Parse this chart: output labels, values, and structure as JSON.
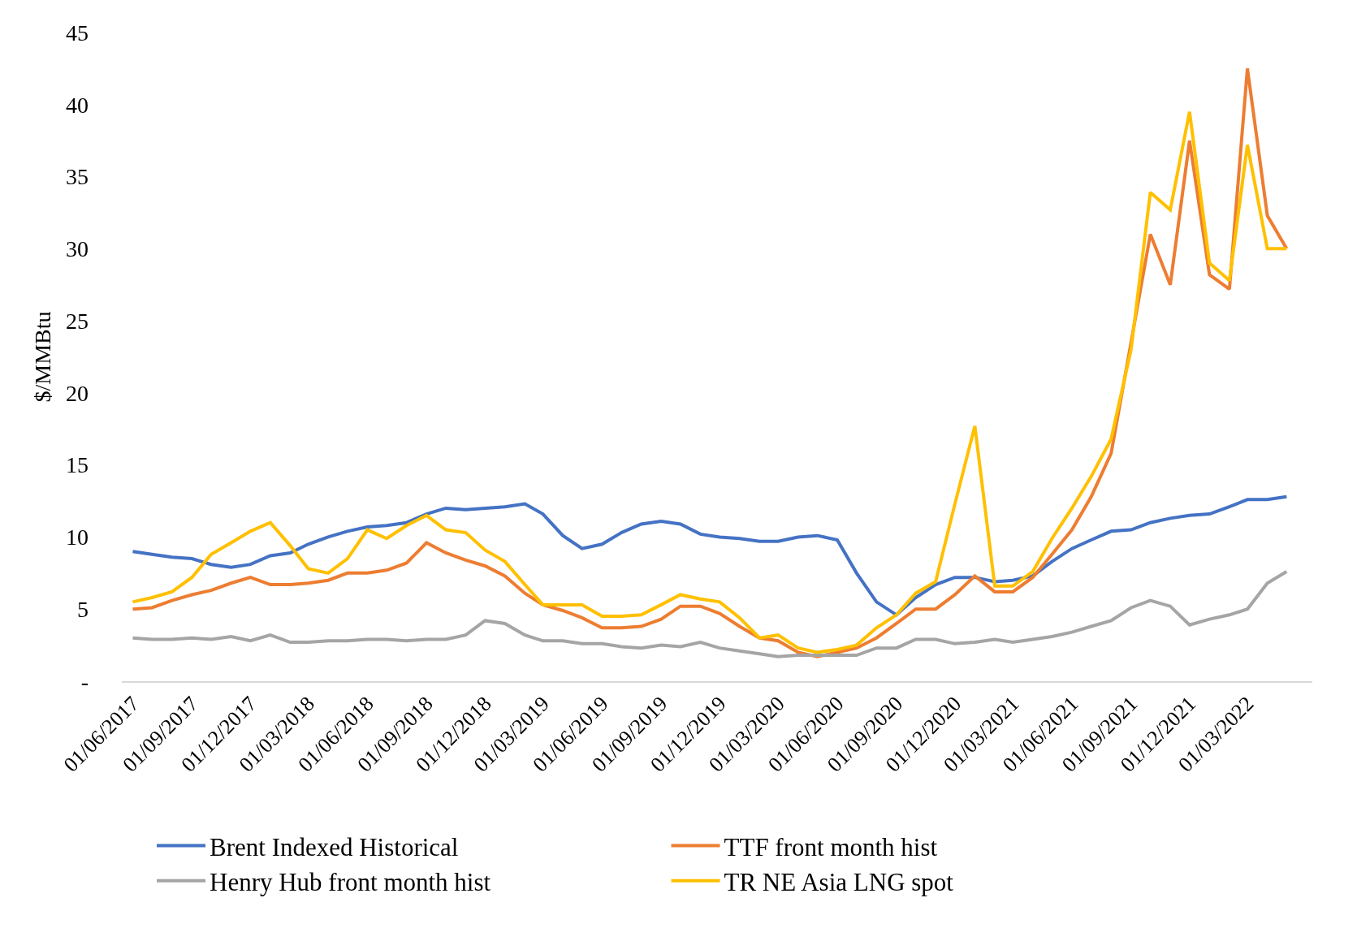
{
  "chart_data": {
    "type": "line",
    "ylabel": "$/MMBtu",
    "x": [
      "2017-06",
      "2017-07",
      "2017-08",
      "2017-09",
      "2017-10",
      "2017-11",
      "2017-12",
      "2018-01",
      "2018-02",
      "2018-03",
      "2018-04",
      "2018-05",
      "2018-06",
      "2018-07",
      "2018-08",
      "2018-09",
      "2018-10",
      "2018-11",
      "2018-12",
      "2019-01",
      "2019-02",
      "2019-03",
      "2019-04",
      "2019-05",
      "2019-06",
      "2019-07",
      "2019-08",
      "2019-09",
      "2019-10",
      "2019-11",
      "2019-12",
      "2020-01",
      "2020-02",
      "2020-03",
      "2020-04",
      "2020-05",
      "2020-06",
      "2020-07",
      "2020-08",
      "2020-09",
      "2020-10",
      "2020-11",
      "2020-12",
      "2021-01",
      "2021-02",
      "2021-03",
      "2021-04",
      "2021-05",
      "2021-06",
      "2021-07",
      "2021-08",
      "2021-09",
      "2021-10",
      "2021-11",
      "2021-12",
      "2022-01",
      "2022-02",
      "2022-03",
      "2022-04",
      "2022-05"
    ],
    "series": [
      {
        "name": "Brent Indexed Historical",
        "color": "#4472c4",
        "values": [
          9.0,
          8.8,
          8.6,
          8.5,
          8.1,
          7.9,
          8.1,
          8.7,
          8.9,
          9.5,
          10.0,
          10.4,
          10.7,
          10.8,
          11.0,
          11.6,
          12.0,
          11.9,
          12.0,
          12.1,
          12.3,
          11.6,
          10.1,
          9.2,
          9.5,
          10.3,
          10.9,
          11.1,
          10.9,
          10.2,
          10.0,
          9.9,
          9.7,
          9.7,
          10.0,
          10.1,
          9.8,
          7.5,
          5.5,
          4.6,
          5.8,
          6.7,
          7.2,
          7.2,
          6.9,
          7.0,
          7.3,
          8.3,
          9.2,
          9.8,
          10.4,
          10.5,
          11.0,
          11.3,
          11.5,
          11.6,
          12.1,
          12.6,
          12.6,
          12.8
        ]
      },
      {
        "name": "TTF front month hist",
        "color": "#ed7d31",
        "values": [
          5.0,
          5.1,
          5.6,
          6.0,
          6.3,
          6.8,
          7.2,
          6.7,
          6.7,
          6.8,
          7.0,
          7.5,
          7.5,
          7.7,
          8.2,
          9.6,
          8.9,
          8.4,
          8.0,
          7.3,
          6.1,
          5.3,
          4.9,
          4.4,
          3.7,
          3.7,
          3.8,
          4.3,
          5.2,
          5.2,
          4.7,
          3.8,
          3.0,
          2.8,
          2.0,
          1.7,
          2.0,
          2.3,
          3.0,
          4.0,
          5.0,
          5.0,
          6.0,
          7.3,
          6.2,
          6.2,
          7.2,
          8.8,
          10.5,
          12.8,
          15.8,
          23.5,
          31.0,
          27.5,
          37.5,
          28.2,
          27.2,
          42.5,
          32.3,
          30.0
        ]
      },
      {
        "name": "Henry Hub front month hist",
        "color": "#a5a5a5",
        "values": [
          3.0,
          2.9,
          2.9,
          3.0,
          2.9,
          3.1,
          2.8,
          3.2,
          2.7,
          2.7,
          2.8,
          2.8,
          2.9,
          2.9,
          2.8,
          2.9,
          2.9,
          3.2,
          4.2,
          4.0,
          3.2,
          2.8,
          2.8,
          2.6,
          2.6,
          2.4,
          2.3,
          2.5,
          2.4,
          2.7,
          2.3,
          2.1,
          1.9,
          1.7,
          1.8,
          1.8,
          1.8,
          1.8,
          2.3,
          2.3,
          2.9,
          2.9,
          2.6,
          2.7,
          2.9,
          2.7,
          2.9,
          3.1,
          3.4,
          3.8,
          4.2,
          5.1,
          5.6,
          5.2,
          3.9,
          4.3,
          4.6,
          5.0,
          6.8,
          7.6
        ]
      },
      {
        "name": "TR NE Asia LNG spot",
        "color": "#ffc000",
        "values": [
          5.5,
          5.8,
          6.2,
          7.2,
          8.8,
          9.6,
          10.4,
          11.0,
          9.4,
          7.8,
          7.5,
          8.5,
          10.5,
          9.9,
          10.8,
          11.5,
          10.5,
          10.3,
          9.1,
          8.3,
          6.7,
          5.3,
          5.3,
          5.3,
          4.5,
          4.5,
          4.6,
          5.3,
          6.0,
          5.7,
          5.5,
          4.4,
          3.0,
          3.2,
          2.3,
          2.0,
          2.2,
          2.5,
          3.7,
          4.6,
          6.1,
          6.9,
          12.3,
          17.7,
          6.6,
          6.6,
          7.6,
          9.9,
          12.0,
          14.2,
          16.8,
          23.0,
          33.9,
          32.7,
          39.5,
          29.0,
          27.8,
          37.2,
          30.0,
          30.0
        ]
      }
    ],
    "xlim": [
      "2017-05-15",
      "2022-06-10"
    ],
    "xticks": [
      {
        "value": "2017-06",
        "label": "01/06/2017"
      },
      {
        "value": "2017-09",
        "label": "01/09/2017"
      },
      {
        "value": "2017-12",
        "label": "01/12/2017"
      },
      {
        "value": "2018-03",
        "label": "01/03/2018"
      },
      {
        "value": "2018-06",
        "label": "01/06/2018"
      },
      {
        "value": "2018-09",
        "label": "01/09/2018"
      },
      {
        "value": "2018-12",
        "label": "01/12/2018"
      },
      {
        "value": "2019-03",
        "label": "01/03/2019"
      },
      {
        "value": "2019-06",
        "label": "01/06/2019"
      },
      {
        "value": "2019-09",
        "label": "01/09/2019"
      },
      {
        "value": "2019-12",
        "label": "01/12/2019"
      },
      {
        "value": "2020-03",
        "label": "01/03/2020"
      },
      {
        "value": "2020-06",
        "label": "01/06/2020"
      },
      {
        "value": "2020-09",
        "label": "01/09/2020"
      },
      {
        "value": "2020-12",
        "label": "01/12/2020"
      },
      {
        "value": "2021-03",
        "label": "01/03/2021"
      },
      {
        "value": "2021-06",
        "label": "01/06/2021"
      },
      {
        "value": "2021-09",
        "label": "01/09/2021"
      },
      {
        "value": "2021-12",
        "label": "01/12/2021"
      },
      {
        "value": "2022-03",
        "label": "01/03/2022"
      }
    ],
    "ylim": [
      0,
      45
    ],
    "yticks": [
      {
        "value": 0,
        "label": "-"
      },
      5,
      10,
      15,
      20,
      25,
      30,
      35,
      40,
      45
    ],
    "grid": false,
    "legend": "bottom",
    "marker": "none",
    "line_style": "solid"
  }
}
